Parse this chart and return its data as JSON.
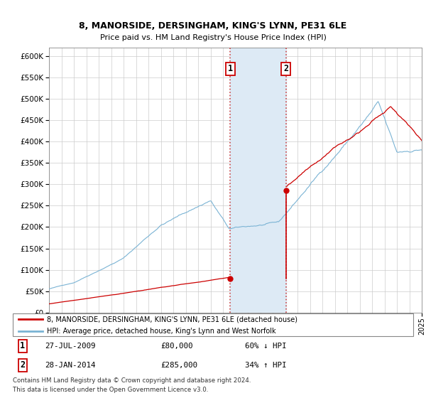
{
  "title1": "8, MANORSIDE, DERSINGHAM, KING'S LYNN, PE31 6LE",
  "title2": "Price paid vs. HM Land Registry's House Price Index (HPI)",
  "sale1_year": 2009.583,
  "sale1_price": 80000,
  "sale2_year": 2014.083,
  "sale2_price": 285000,
  "sale1_pct": "60% ↓ HPI",
  "sale2_pct": "34% ↑ HPI",
  "sale1_date_str": "27-JUL-2009",
  "sale2_date_str": "28-JAN-2014",
  "sale1_price_str": "£80,000",
  "sale2_price_str": "£285,000",
  "legend_line1": "8, MANORSIDE, DERSINGHAM, KING'S LYNN, PE31 6LE (detached house)",
  "legend_line2": "HPI: Average price, detached house, King's Lynn and West Norfolk",
  "footer1": "Contains HM Land Registry data © Crown copyright and database right 2024.",
  "footer2": "This data is licensed under the Open Government Licence v3.0.",
  "hpi_color": "#7ab3d4",
  "price_color": "#cc0000",
  "shade_color": "#ddeaf5",
  "vline_color": "#cc4444",
  "ylim_min": 0,
  "ylim_max": 620000,
  "ytick_step": 50000,
  "year_start": 1995,
  "year_end": 2025
}
